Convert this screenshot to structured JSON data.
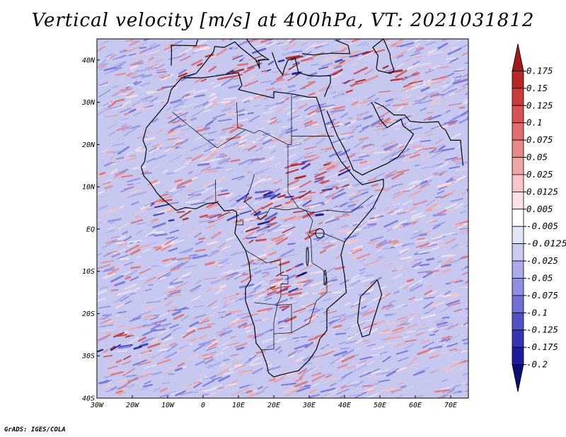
{
  "title": "Vertical velocity [m/s] at 400hPa, VT: 2021031812",
  "credit": "GrADS: IGES/COLA",
  "map": {
    "lon_range": [
      -30,
      75
    ],
    "lat_range": [
      -40,
      45
    ],
    "lat_ticks": [
      {
        "value": 40,
        "label": "40N"
      },
      {
        "value": 30,
        "label": "30N"
      },
      {
        "value": 20,
        "label": "20N"
      },
      {
        "value": 10,
        "label": "10N"
      },
      {
        "value": 0,
        "label": "EQ"
      },
      {
        "value": -10,
        "label": "10S"
      },
      {
        "value": -20,
        "label": "20S"
      },
      {
        "value": -30,
        "label": "30S"
      },
      {
        "value": -40,
        "label": "40S"
      }
    ],
    "lon_ticks": [
      {
        "value": -30,
        "label": "30W"
      },
      {
        "value": -20,
        "label": "20W"
      },
      {
        "value": -10,
        "label": "10W"
      },
      {
        "value": 0,
        "label": "0"
      },
      {
        "value": 10,
        "label": "10E"
      },
      {
        "value": 20,
        "label": "20E"
      },
      {
        "value": 30,
        "label": "30E"
      },
      {
        "value": 40,
        "label": "40E"
      },
      {
        "value": 50,
        "label": "50E"
      },
      {
        "value": 60,
        "label": "60E"
      },
      {
        "value": 70,
        "label": "70E"
      }
    ]
  },
  "colorbar": {
    "labels": [
      "0.175",
      "0.15",
      "0.125",
      "0.1",
      "0.075",
      "0.05",
      "0.025",
      "0.0125",
      "0.005",
      "-0.005",
      "-0.0125",
      "-0.025",
      "-0.05",
      "-0.075",
      "-0.1",
      "-0.125",
      "-0.175",
      "-0.2"
    ],
    "colors": [
      "#a01818",
      "#b82626",
      "#cc3b3b",
      "#d85454",
      "#e06c6c",
      "#e88888",
      "#f0a5a5",
      "#f7c6c6",
      "#fce3e3",
      "#ffffff",
      "#e4e4f8",
      "#cacaf2",
      "#ababea",
      "#8f8fe2",
      "#7070d6",
      "#5252c6",
      "#3434b4",
      "#1c1c9a",
      "#0d0d7a"
    ]
  }
}
